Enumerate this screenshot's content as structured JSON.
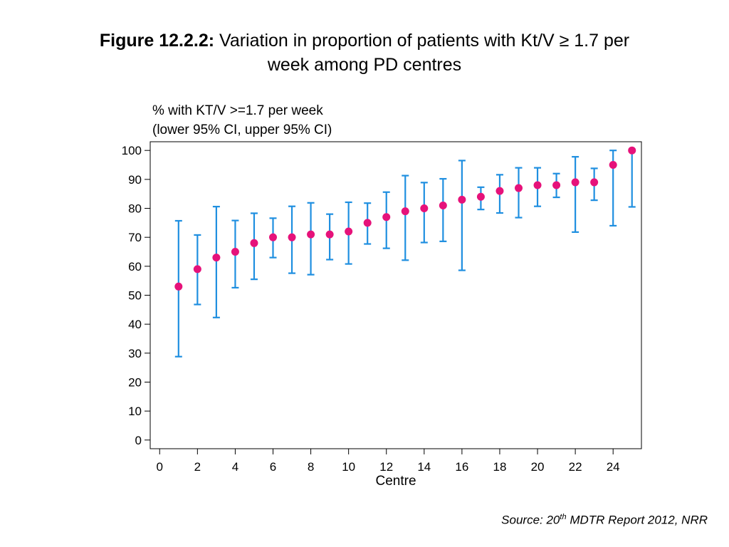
{
  "title": {
    "prefix": "Figure 12.2.2:",
    "text_before_symbol": "Variation in proportion of patients with Kt/V",
    "symbol": "≥",
    "text_after_symbol": "1.7 per",
    "line2": "week among PD centres"
  },
  "source": {
    "prefix": "Source: 20",
    "superscript": "th",
    "suffix": "MDTR Report 2012, NRR"
  },
  "chart_data": {
    "type": "scatter",
    "title": "Variation in proportion of patients with Kt/V ≥ 1.7 per week among PD centres",
    "ylabel_lines": [
      "% with KT/V >=1.7 per week",
      "(lower 95% CI, upper 95% CI)"
    ],
    "xlabel": "Centre",
    "xlim": [
      -0.5,
      25.5
    ],
    "ylim": [
      -3,
      103
    ],
    "xticks": [
      0,
      2,
      4,
      6,
      8,
      10,
      12,
      14,
      16,
      18,
      20,
      22,
      24
    ],
    "yticks": [
      0,
      10,
      20,
      30,
      40,
      50,
      60,
      70,
      80,
      90,
      100
    ],
    "grid": false,
    "point_color": "#e6127a",
    "errorbar_color": "#1f8fe0",
    "series": [
      {
        "x": [
          1,
          2,
          3,
          4,
          5,
          6,
          7,
          8,
          9,
          10,
          11,
          12,
          13,
          14,
          15,
          16,
          17,
          18,
          19,
          20,
          21,
          22,
          23,
          24,
          25
        ],
        "y": [
          53,
          59,
          63,
          65,
          68,
          70,
          70,
          71,
          71,
          72,
          75,
          77,
          79,
          80,
          81,
          83,
          84,
          86,
          87,
          88,
          88,
          89,
          89,
          95,
          100
        ],
        "lower": [
          28.8,
          46.8,
          42.3,
          52.6,
          55.5,
          63,
          57.6,
          57.1,
          62.3,
          60.8,
          67.7,
          66.2,
          62.1,
          68.2,
          68.6,
          58.6,
          79.6,
          78.4,
          76.8,
          80.7,
          83.8,
          71.8,
          82.8,
          74,
          80.5
        ],
        "upper": [
          75.7,
          70.8,
          80.6,
          75.8,
          78.3,
          76.6,
          80.7,
          81.9,
          78,
          82.1,
          81.8,
          85.6,
          91.3,
          88.9,
          90.2,
          96.5,
          87.3,
          91.6,
          94,
          94,
          92,
          97.8,
          93.8,
          100,
          100
        ]
      }
    ]
  }
}
